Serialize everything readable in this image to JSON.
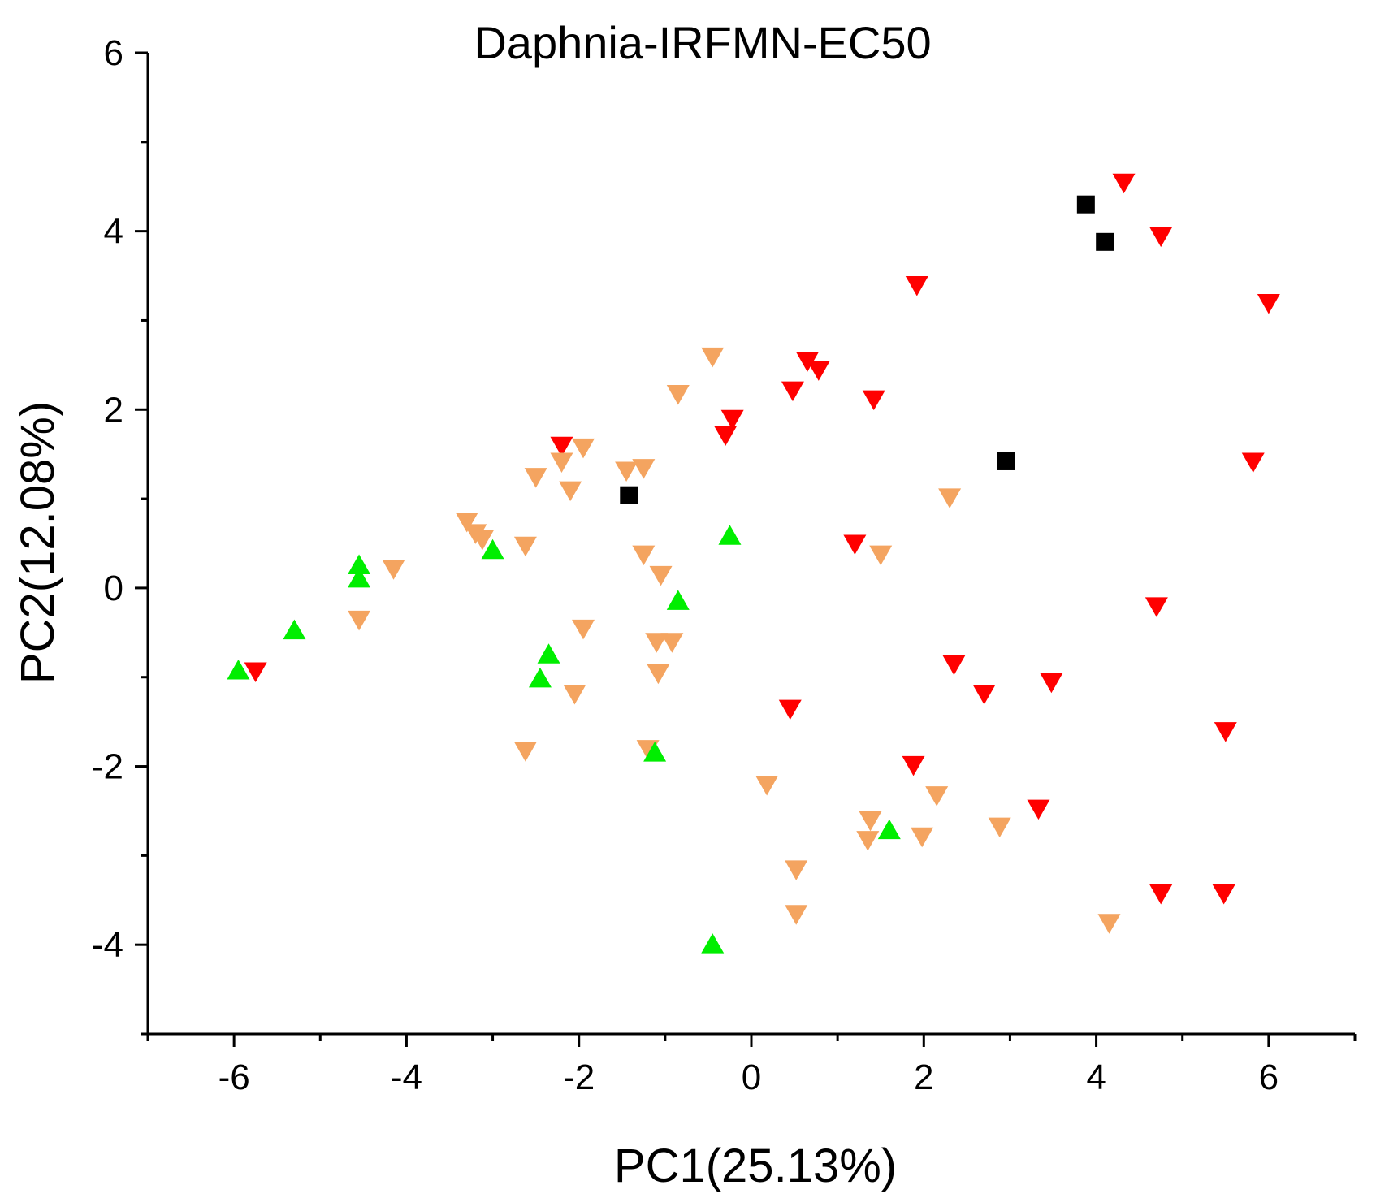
{
  "chart_data": {
    "type": "scatter",
    "title": "Daphnia-IRFMN-EC50",
    "xlabel": "PC1(25.13%)",
    "ylabel": "PC2(12.08%)",
    "xlim": [
      -7,
      7
    ],
    "ylim": [
      -5,
      6
    ],
    "xticks": [
      -6,
      -4,
      -2,
      0,
      2,
      4,
      6
    ],
    "yticks": [
      -4,
      -2,
      0,
      2,
      4,
      6
    ],
    "grid": false,
    "series": [
      {
        "name": "red down-triangles",
        "marker": "triangle-down",
        "color": "#ff0000",
        "points": [
          [
            4.32,
            4.55
          ],
          [
            4.75,
            3.95
          ],
          [
            1.92,
            3.4
          ],
          [
            6.0,
            3.2
          ],
          [
            0.65,
            2.55
          ],
          [
            0.78,
            2.45
          ],
          [
            0.48,
            2.22
          ],
          [
            1.42,
            2.12
          ],
          [
            -0.22,
            1.9
          ],
          [
            -0.3,
            1.72
          ],
          [
            5.82,
            1.42
          ],
          [
            -2.2,
            1.6
          ],
          [
            1.2,
            0.5
          ],
          [
            4.7,
            -0.2
          ],
          [
            2.35,
            -0.85
          ],
          [
            2.7,
            -1.18
          ],
          [
            3.48,
            -1.05
          ],
          [
            0.45,
            -1.35
          ],
          [
            5.5,
            -1.6
          ],
          [
            1.88,
            -1.98
          ],
          [
            3.33,
            -2.47
          ],
          [
            4.75,
            -3.42
          ],
          [
            5.48,
            -3.42
          ],
          [
            -5.75,
            -0.93
          ]
        ]
      },
      {
        "name": "orange down-triangles",
        "marker": "triangle-down",
        "color": "#f4a460",
        "points": [
          [
            -0.45,
            2.6
          ],
          [
            -0.85,
            2.18
          ],
          [
            -1.95,
            1.58
          ],
          [
            -2.2,
            1.42
          ],
          [
            -1.45,
            1.32
          ],
          [
            -1.25,
            1.35
          ],
          [
            -2.5,
            1.25
          ],
          [
            -2.1,
            1.1
          ],
          [
            -3.3,
            0.75
          ],
          [
            -3.2,
            0.62
          ],
          [
            -3.12,
            0.55
          ],
          [
            -2.62,
            0.48
          ],
          [
            -4.15,
            0.22
          ],
          [
            -1.25,
            0.38
          ],
          [
            -1.05,
            0.15
          ],
          [
            -4.55,
            -0.35
          ],
          [
            -1.95,
            -0.45
          ],
          [
            -1.1,
            -0.6
          ],
          [
            -0.92,
            -0.6
          ],
          [
            -1.08,
            -0.95
          ],
          [
            -2.05,
            -1.18
          ],
          [
            -2.62,
            -1.82
          ],
          [
            -1.2,
            -1.8
          ],
          [
            0.18,
            -2.2
          ],
          [
            2.3,
            1.02
          ],
          [
            1.5,
            0.38
          ],
          [
            2.15,
            -2.32
          ],
          [
            1.38,
            -2.6
          ],
          [
            1.35,
            -2.82
          ],
          [
            1.98,
            -2.78
          ],
          [
            2.88,
            -2.67
          ],
          [
            0.52,
            -3.15
          ],
          [
            0.52,
            -3.65
          ],
          [
            4.15,
            -3.75
          ]
        ]
      },
      {
        "name": "green up-triangles",
        "marker": "triangle-up",
        "color": "#00ee00",
        "points": [
          [
            -4.55,
            0.25
          ],
          [
            -4.55,
            0.1
          ],
          [
            -3.0,
            0.42
          ],
          [
            -0.25,
            0.58
          ],
          [
            -0.85,
            -0.15
          ],
          [
            -5.3,
            -0.48
          ],
          [
            -5.95,
            -0.93
          ],
          [
            -2.35,
            -0.75
          ],
          [
            -2.45,
            -1.02
          ],
          [
            -1.12,
            -1.85
          ],
          [
            1.6,
            -2.72
          ],
          [
            -0.45,
            -4.0
          ]
        ]
      },
      {
        "name": "black squares",
        "marker": "square",
        "color": "#000000",
        "points": [
          [
            3.88,
            4.3
          ],
          [
            4.1,
            3.88
          ],
          [
            2.95,
            1.42
          ],
          [
            -1.42,
            1.04
          ]
        ]
      }
    ]
  }
}
